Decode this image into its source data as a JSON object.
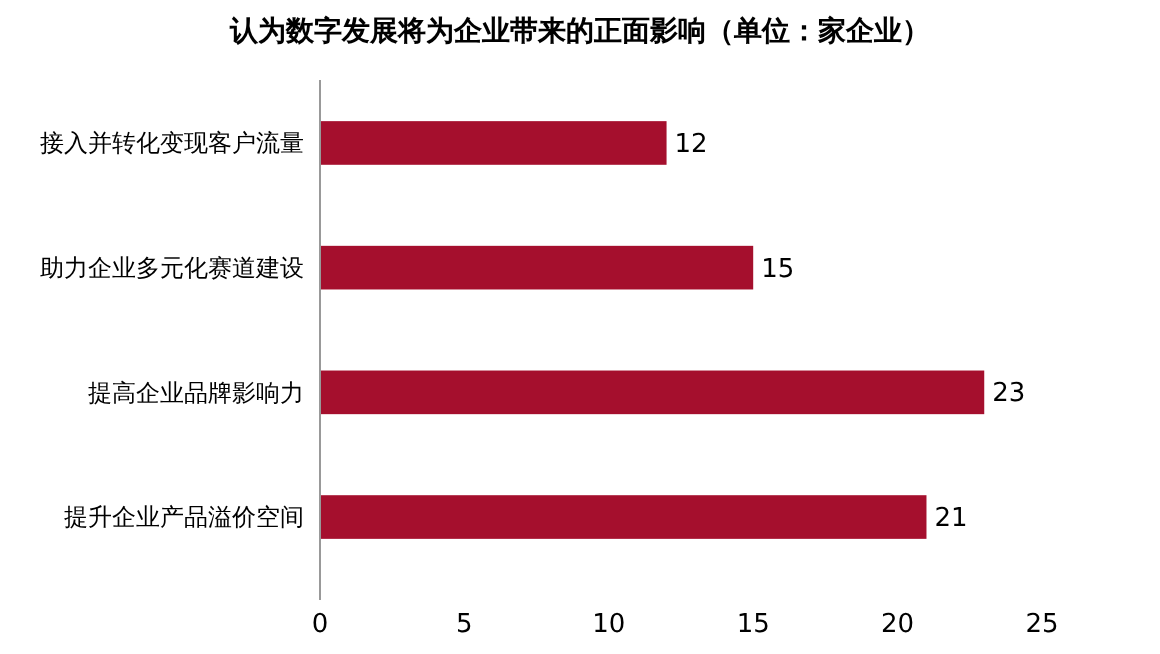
{
  "chart_data": {
    "type": "bar",
    "orientation": "horizontal",
    "title": "认为数字发展将为企业带来的正面影响（单位：家企业）",
    "categories": [
      "接入并转化变现客户流量",
      "助力企业多元化赛道建设",
      "提高企业品牌影响力",
      "提升企业产品溢价空间"
    ],
    "values": [
      12,
      15,
      23,
      21
    ],
    "color": "#a50f2d",
    "data_labels": true,
    "xlim": [
      0,
      25
    ],
    "xticks": [
      0,
      5,
      10,
      15,
      20,
      25
    ],
    "grid": false
  }
}
